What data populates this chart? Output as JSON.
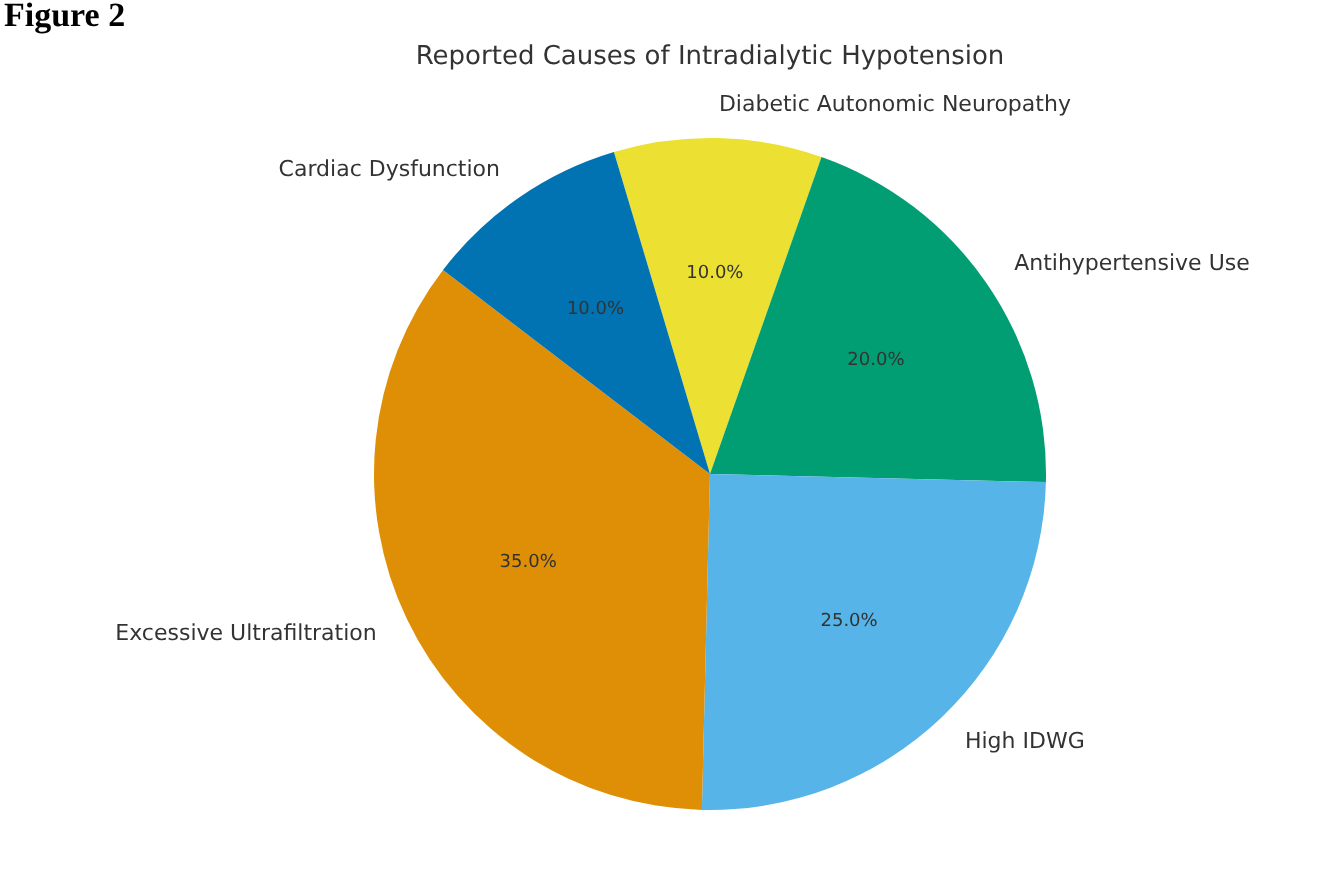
{
  "chart_data": {
    "type": "pie",
    "title": "Reported Causes of Intradialytic Hypotension",
    "categories": [
      "Diabetic Autonomic Neuropathy",
      "Antihypertensive Use",
      "High IDWG",
      "Excessive Ultrafiltration",
      "Cardiac Dysfunction"
    ],
    "values": [
      10,
      20,
      25,
      35,
      10
    ],
    "colors": [
      "#ece133",
      "#029e73",
      "#56b4e9",
      "#de8f05",
      "#0173b2"
    ],
    "value_labels": [
      "10.0%",
      "20.0%",
      "25.0%",
      "35.0%",
      "10.0%"
    ],
    "annotations": [
      "Figure 2"
    ]
  }
}
